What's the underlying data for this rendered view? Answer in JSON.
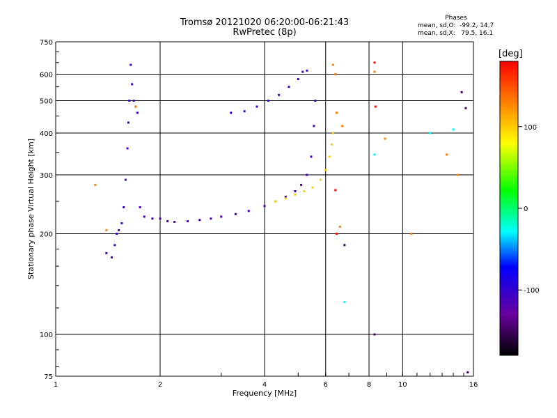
{
  "chart_data": {
    "type": "scatter",
    "title": "Tromsø 20121020 06:20:00-06:21:43",
    "subtitle": "RwPretec (8p)",
    "xlabel": "Frequency [MHz]",
    "ylabel": "Stationary phase Virtual Height [km]",
    "xscale": "log",
    "yscale": "log",
    "xlim": [
      1,
      16
    ],
    "ylim": [
      75,
      750
    ],
    "xticks": [
      1,
      2,
      4,
      6,
      8,
      10,
      16
    ],
    "xtick_labels": [
      "1",
      "2",
      "4",
      "6",
      "8",
      "10",
      "16"
    ],
    "yticks": [
      75,
      100,
      200,
      300,
      400,
      500,
      600,
      750
    ],
    "ytick_labels": [
      "75",
      "100",
      "200",
      "300",
      "400",
      "500",
      "600",
      "750"
    ],
    "grid": true,
    "colorbar": {
      "label": "[deg]",
      "range": [
        -180,
        180
      ],
      "ticks": [
        100,
        0,
        -100
      ],
      "tick_labels": [
        "100",
        "0",
        "-100"
      ]
    },
    "stats": {
      "title": "Phases",
      "line_o": "mean, sd,O:  -99.2, 14.7",
      "line_x": "mean, sd,X:   79.5, 16.1"
    },
    "traces": [
      {
        "name": "",
        "phase": -105,
        "x": [
          1.4,
          1.45,
          1.48,
          1.5,
          1.52,
          1.55,
          1.57,
          1.59,
          1.61,
          1.62,
          1.63,
          1.645,
          1.66,
          1.68,
          1.7,
          1.72
        ],
        "y": [
          175,
          170,
          185,
          200,
          205,
          215,
          240,
          290,
          360,
          430,
          500,
          640,
          560,
          500,
          480,
          460
        ]
      },
      {
        "name": "",
        "phase": -110,
        "x": [
          1.75,
          1.8,
          1.9,
          2.0,
          2.1,
          2.2,
          2.4,
          2.6,
          2.8,
          3.0,
          3.3,
          3.6,
          4.0,
          4.3,
          4.6,
          4.9,
          5.1,
          5.3,
          5.45,
          5.55,
          5.6
        ],
        "y": [
          240,
          225,
          222,
          222,
          218,
          217,
          218,
          220,
          222,
          225,
          229,
          234,
          242,
          250,
          258,
          268,
          280,
          300,
          340,
          420,
          500
        ]
      },
      {
        "name": "",
        "phase": -105,
        "x": [
          3.2,
          3.5,
          3.8,
          4.1,
          4.4,
          4.7,
          5.0,
          5.15,
          5.3
        ],
        "y": [
          460,
          465,
          480,
          500,
          520,
          550,
          580,
          610,
          615
        ]
      },
      {
        "name": "",
        "phase": 100,
        "x": [
          4.3,
          4.6,
          4.9,
          5.2,
          5.5,
          5.8,
          6.0,
          6.15,
          6.25,
          6.3
        ],
        "y": [
          250,
          255,
          262,
          268,
          275,
          290,
          310,
          340,
          370,
          400
        ]
      },
      {
        "name": "",
        "phase": 130,
        "x": [
          1.3,
          1.4,
          1.7,
          6.3,
          6.4,
          6.45,
          6.6,
          6.7,
          8.3,
          8.9,
          10.6,
          13.4,
          14.4
        ],
        "y": [
          280,
          205,
          480,
          640,
          600,
          460,
          210,
          420,
          610,
          385,
          200,
          345,
          300
        ]
      },
      {
        "name": "",
        "phase": 175,
        "x": [
          6.4,
          6.45,
          8.3,
          8.35
        ],
        "y": [
          270,
          200,
          650,
          480
        ]
      },
      {
        "name": "",
        "phase": -150,
        "x": [
          6.8,
          8.3,
          14.8,
          15.2,
          15.4
        ],
        "y": [
          185,
          100,
          530,
          475,
          77
        ]
      },
      {
        "name": "",
        "phase": -30,
        "x": [
          6.8,
          8.3,
          12.0,
          14.0
        ],
        "y": [
          125,
          345,
          400,
          410
        ]
      }
    ]
  }
}
